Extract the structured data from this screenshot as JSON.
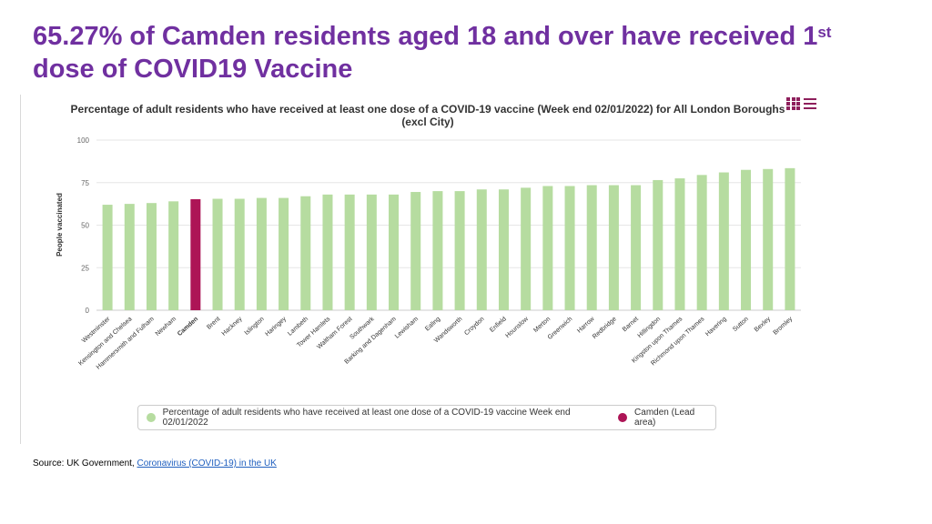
{
  "headline": {
    "text": "65.27% of Camden residents aged 18 and over have received 1",
    "superscript": "st",
    "text_line2": "dose of COVID19 Vaccine"
  },
  "chart_menu_icon": "chart-menu-icon",
  "colors": {
    "headline": "#7030a0",
    "bar": "#b6dca0",
    "highlight_bar": "#ad1456",
    "gridline": "#e6e6e6"
  },
  "chart_data": {
    "type": "bar",
    "title": "Percentage of adult residents who have received at least one dose of a COVID-19 vaccine (Week end 02/01/2022) for All London Boroughs (excl City)",
    "xlabel": "",
    "ylabel": "People vaccinated",
    "ylim": [
      0,
      100
    ],
    "yticks": [
      0,
      25,
      50,
      75,
      100
    ],
    "grid": true,
    "legend_position": "bottom",
    "categories": [
      "Westminster",
      "Kensington and Chelsea",
      "Hammersmith and Fulham",
      "Newham",
      "Camden",
      "Brent",
      "Hackney",
      "Islington",
      "Haringey",
      "Lambeth",
      "Tower Hamlets",
      "Waltham Forest",
      "Southwark",
      "Barking and Dagenham",
      "Lewisham",
      "Ealing",
      "Wandsworth",
      "Croydon",
      "Enfield",
      "Hounslow",
      "Merton",
      "Greenwich",
      "Harrow",
      "Redbridge",
      "Barnet",
      "Hillingdon",
      "Kingston upon Thames",
      "Richmond upon Thames",
      "Havering",
      "Sutton",
      "Bexley",
      "Bromley"
    ],
    "values": [
      62.0,
      62.5,
      63.0,
      64.0,
      65.27,
      65.5,
      65.5,
      66.0,
      66.0,
      67.0,
      68.0,
      68.0,
      68.0,
      68.0,
      69.5,
      70.0,
      70.0,
      71.0,
      71.0,
      72.0,
      73.0,
      73.0,
      73.5,
      73.5,
      73.5,
      76.5,
      77.5,
      79.5,
      81.0,
      82.5,
      83.0,
      83.5
    ],
    "highlight_category": "Camden",
    "legend": [
      {
        "label": "Percentage of adult residents who have received at least one dose of a COVID-19 vaccine Week end 02/01/2022",
        "color": "#b6dca0"
      },
      {
        "label": "Camden (Lead area)",
        "color": "#ad1456"
      }
    ]
  },
  "source": {
    "prefix": "Source: UK Government, ",
    "link_text": "Coronavirus (COVID-19) in the UK"
  }
}
